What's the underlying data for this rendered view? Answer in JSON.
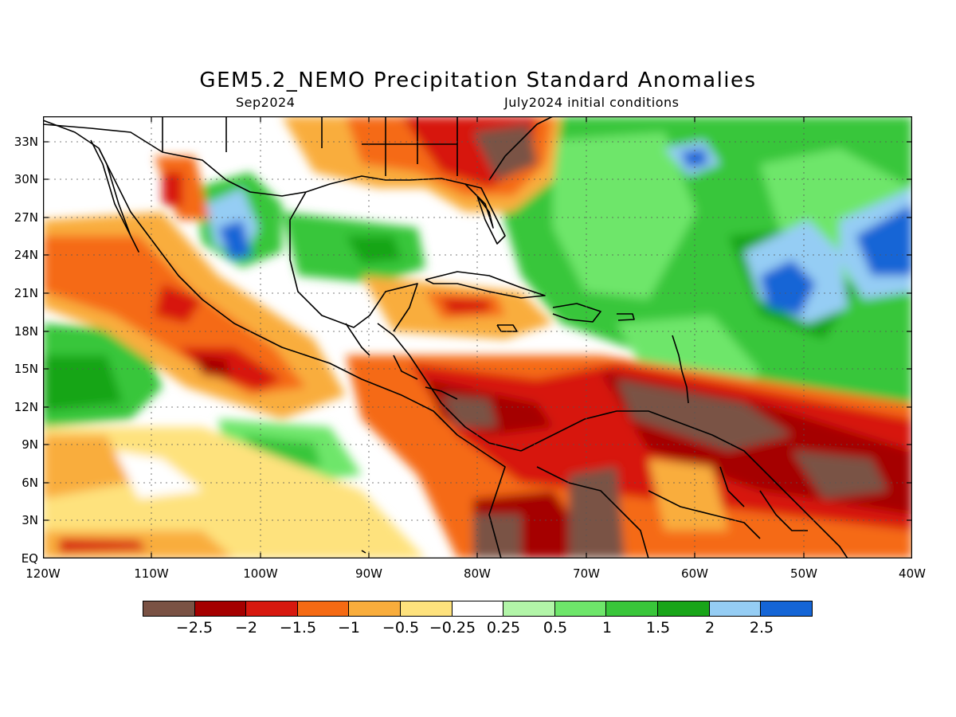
{
  "title": "GEM5.2_NEMO Precipitation Standard Anomalies",
  "subtitle_left": "Sep2024",
  "subtitle_right": "July2024 initial conditions",
  "lat_labels": [
    "33N",
    "30N",
    "27N",
    "24N",
    "21N",
    "18N",
    "15N",
    "12N",
    "9N",
    "6N",
    "3N",
    "EQ"
  ],
  "lon_labels": [
    "120W",
    "110W",
    "100W",
    "90W",
    "80W",
    "70W",
    "60W",
    "50W",
    "40W"
  ],
  "colorbar": {
    "colors": [
      "#7a5244",
      "#a50000",
      "#d7190f",
      "#f56a13",
      "#f9ad3c",
      "#fee27d",
      "#ffffff",
      "#b2f5a8",
      "#6ee66a",
      "#39c63a",
      "#19a519",
      "#95cdf4",
      "#1565d6"
    ],
    "labels": [
      "−2.5",
      "−2",
      "−1.5",
      "−1",
      "−0.5",
      "−0.25",
      "0.25",
      "0.5",
      "1",
      "1.5",
      "2",
      "2.5"
    ]
  },
  "map": {
    "lon_range": [
      -120,
      -40
    ],
    "lat_range": [
      0,
      35
    ]
  }
}
